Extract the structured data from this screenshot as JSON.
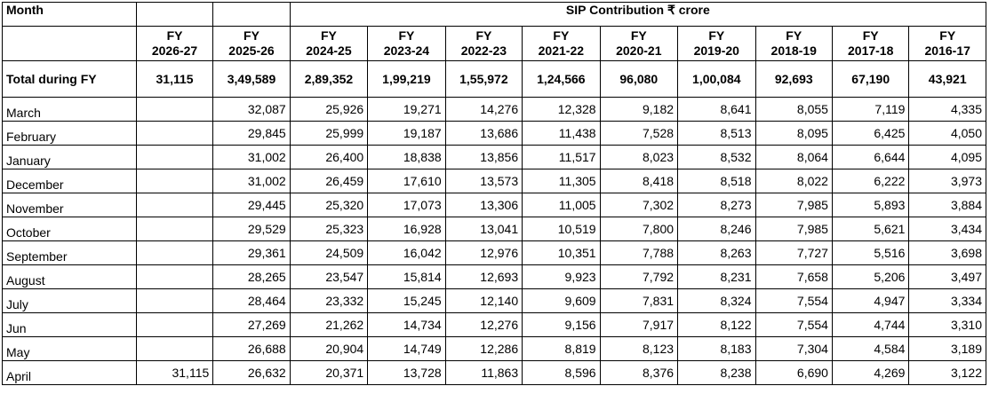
{
  "header": {
    "corner_label": "Month",
    "span_title": "SIP Contribution ₹ crore",
    "fy_columns": [
      {
        "line1": "FY",
        "line2": "2026-27"
      },
      {
        "line1": "FY",
        "line2": "2025-26"
      },
      {
        "line1": "FY",
        "line2": "2024-25"
      },
      {
        "line1": "FY",
        "line2": "2023-24"
      },
      {
        "line1": "FY",
        "line2": "2022-23"
      },
      {
        "line1": "FY",
        "line2": "2021-22"
      },
      {
        "line1": "FY",
        "line2": "2020-21"
      },
      {
        "line1": "FY",
        "line2": "2019-20"
      },
      {
        "line1": "FY",
        "line2": "2018-19"
      },
      {
        "line1": "FY",
        "line2": "2017-18"
      },
      {
        "line1": "FY",
        "line2": "2016-17"
      }
    ]
  },
  "total_row": {
    "label": "Total during FY",
    "values": [
      "31,115",
      "3,49,589",
      "2,89,352",
      "1,99,219",
      "1,55,972",
      "1,24,566",
      "96,080",
      "1,00,084",
      "92,693",
      "67,190",
      "43,921"
    ]
  },
  "rows": [
    {
      "month": "March",
      "values": [
        "",
        "32,087",
        "25,926",
        "19,271",
        "14,276",
        "12,328",
        "9,182",
        "8,641",
        "8,055",
        "7,119",
        "4,335"
      ]
    },
    {
      "month": "February",
      "values": [
        "",
        "29,845",
        "25,999",
        "19,187",
        "13,686",
        "11,438",
        "7,528",
        "8,513",
        "8,095",
        "6,425",
        "4,050"
      ]
    },
    {
      "month": "January",
      "values": [
        "",
        "31,002",
        "26,400",
        "18,838",
        "13,856",
        "11,517",
        "8,023",
        "8,532",
        "8,064",
        "6,644",
        "4,095"
      ]
    },
    {
      "month": "December",
      "values": [
        "",
        "31,002",
        "26,459",
        "17,610",
        "13,573",
        "11,305",
        "8,418",
        "8,518",
        "8,022",
        "6,222",
        "3,973"
      ]
    },
    {
      "month": "November",
      "values": [
        "",
        "29,445",
        "25,320",
        "17,073",
        "13,306",
        "11,005",
        "7,302",
        "8,273",
        "7,985",
        "5,893",
        "3,884"
      ]
    },
    {
      "month": "October",
      "values": [
        "",
        "29,529",
        "25,323",
        "16,928",
        "13,041",
        "10,519",
        "7,800",
        "8,246",
        "7,985",
        "5,621",
        "3,434"
      ]
    },
    {
      "month": "September",
      "values": [
        "",
        "29,361",
        "24,509",
        "16,042",
        "12,976",
        "10,351",
        "7,788",
        "8,263",
        "7,727",
        "5,516",
        "3,698"
      ]
    },
    {
      "month": "August",
      "values": [
        "",
        "28,265",
        "23,547",
        "15,814",
        "12,693",
        "9,923",
        "7,792",
        "8,231",
        "7,658",
        "5,206",
        "3,497"
      ]
    },
    {
      "month": "July",
      "values": [
        "",
        "28,464",
        "23,332",
        "15,245",
        "12,140",
        "9,609",
        "7,831",
        "8,324",
        "7,554",
        "4,947",
        "3,334"
      ]
    },
    {
      "month": "Jun",
      "values": [
        "",
        "27,269",
        "21,262",
        "14,734",
        "12,276",
        "9,156",
        "7,917",
        "8,122",
        "7,554",
        "4,744",
        "3,310"
      ]
    },
    {
      "month": "May",
      "values": [
        "",
        "26,688",
        "20,904",
        "14,749",
        "12,286",
        "8,819",
        "8,123",
        "8,183",
        "7,304",
        "4,584",
        "3,189"
      ]
    },
    {
      "month": "April",
      "values": [
        "31,115",
        "26,632",
        "20,371",
        "13,728",
        "11,863",
        "8,596",
        "8,376",
        "8,238",
        "6,690",
        "4,269",
        "3,122"
      ]
    }
  ]
}
